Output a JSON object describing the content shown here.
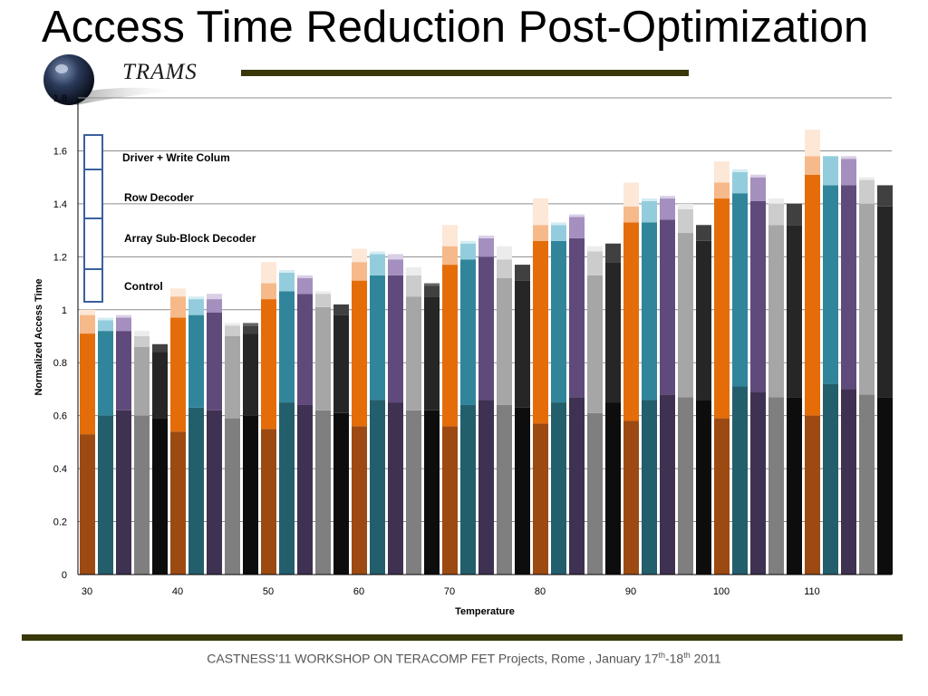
{
  "slide": {
    "title": "Access Time Reduction Post-Optimization",
    "logo_text": "TRAMS",
    "footer": {
      "prefix": "CASTNESS’11 WORKSHOP ON TERACOMP  FET Projects, Rome , January 17",
      "sup1": "th",
      "mid": "-18",
      "sup2": "th",
      "suffix": " 2011"
    }
  },
  "chart_data": {
    "type": "bar",
    "stacked": true,
    "xlabel": "Temperature",
    "ylabel": "Normalized Access Time",
    "ylim": [
      0,
      1.8
    ],
    "yticks": [
      "0",
      "0.2",
      "0.4",
      "0.6",
      "0.8",
      "1",
      "1.2",
      "1.4",
      "1.6",
      "1.8"
    ],
    "x_tick_labels": [
      "30",
      "40",
      "50",
      "60",
      "70",
      "80",
      "90",
      "100",
      "110"
    ],
    "grid": true,
    "legend_labels": [
      "Driver + Write Colum",
      "Row Decoder",
      "Array Sub-Block Decoder",
      "Control"
    ],
    "group_colors": {
      "orange": [
        "#9c4a12",
        "#e46d0a",
        "#f6b98a",
        "#fde7d6"
      ],
      "teal": [
        "#235e6c",
        "#31859b",
        "#93cddd",
        "#d4ecf3"
      ],
      "purple": [
        "#3f3151",
        "#604a7b",
        "#a48fbf",
        "#d9cfe6"
      ],
      "gray": [
        "#7f7f7f",
        "#a6a6a6",
        "#cccccc",
        "#ececec"
      ],
      "black": [
        "#0d0d0d",
        "#262626",
        "#404040",
        "#666666"
      ]
    },
    "groups": [
      {
        "temperature": "30",
        "bars": [
          [
            0.53,
            0.91,
            0.98,
            1.0
          ],
          [
            0.6,
            0.92,
            0.96,
            0.97
          ],
          [
            0.62,
            0.92,
            0.97,
            0.98
          ],
          [
            0.6,
            0.86,
            0.9,
            0.92
          ],
          [
            0.59,
            0.84,
            0.87,
            0.87
          ]
        ]
      },
      {
        "temperature": "40",
        "bars": [
          [
            0.54,
            0.97,
            1.05,
            1.08
          ],
          [
            0.63,
            0.98,
            1.04,
            1.05
          ],
          [
            0.62,
            0.99,
            1.04,
            1.06
          ],
          [
            0.59,
            0.9,
            0.94,
            0.95
          ],
          [
            0.6,
            0.91,
            0.94,
            0.95
          ]
        ]
      },
      {
        "temperature": "50",
        "bars": [
          [
            0.55,
            1.04,
            1.1,
            1.18
          ],
          [
            0.65,
            1.07,
            1.14,
            1.15
          ],
          [
            0.64,
            1.06,
            1.12,
            1.13
          ],
          [
            0.62,
            1.01,
            1.06,
            1.07
          ],
          [
            0.61,
            0.98,
            1.02,
            1.02
          ]
        ]
      },
      {
        "temperature": "60",
        "bars": [
          [
            0.56,
            1.11,
            1.18,
            1.23
          ],
          [
            0.66,
            1.13,
            1.21,
            1.22
          ],
          [
            0.65,
            1.13,
            1.19,
            1.21
          ],
          [
            0.62,
            1.05,
            1.13,
            1.16
          ],
          [
            0.62,
            1.05,
            1.09,
            1.1
          ]
        ]
      },
      {
        "temperature": "70",
        "bars": [
          [
            0.56,
            1.17,
            1.24,
            1.32
          ],
          [
            0.64,
            1.19,
            1.25,
            1.26
          ],
          [
            0.66,
            1.2,
            1.27,
            1.28
          ],
          [
            0.64,
            1.12,
            1.19,
            1.24
          ],
          [
            0.63,
            1.11,
            1.17,
            1.17
          ]
        ]
      },
      {
        "temperature": "80",
        "bars": [
          [
            0.57,
            1.26,
            1.32,
            1.42
          ],
          [
            0.65,
            1.26,
            1.32,
            1.33
          ],
          [
            0.67,
            1.27,
            1.35,
            1.36
          ],
          [
            0.61,
            1.13,
            1.22,
            1.24
          ],
          [
            0.65,
            1.18,
            1.25,
            1.25
          ]
        ]
      },
      {
        "temperature": "90",
        "bars": [
          [
            0.58,
            1.33,
            1.39,
            1.48
          ],
          [
            0.66,
            1.33,
            1.41,
            1.42
          ],
          [
            0.68,
            1.34,
            1.42,
            1.43
          ],
          [
            0.67,
            1.29,
            1.38,
            1.4
          ],
          [
            0.66,
            1.26,
            1.32,
            1.32
          ]
        ]
      },
      {
        "temperature": "100",
        "bars": [
          [
            0.59,
            1.42,
            1.48,
            1.56
          ],
          [
            0.71,
            1.44,
            1.52,
            1.53
          ],
          [
            0.69,
            1.41,
            1.5,
            1.51
          ],
          [
            0.67,
            1.32,
            1.4,
            1.42
          ],
          [
            0.67,
            1.32,
            1.4,
            1.4
          ]
        ]
      },
      {
        "temperature": "110",
        "bars": [
          [
            0.6,
            1.51,
            1.58,
            1.68
          ],
          [
            0.72,
            1.47,
            1.58,
            1.58
          ],
          [
            0.7,
            1.47,
            1.57,
            1.58
          ],
          [
            0.68,
            1.4,
            1.49,
            1.5
          ],
          [
            0.67,
            1.39,
            1.47,
            1.47
          ]
        ]
      }
    ]
  }
}
